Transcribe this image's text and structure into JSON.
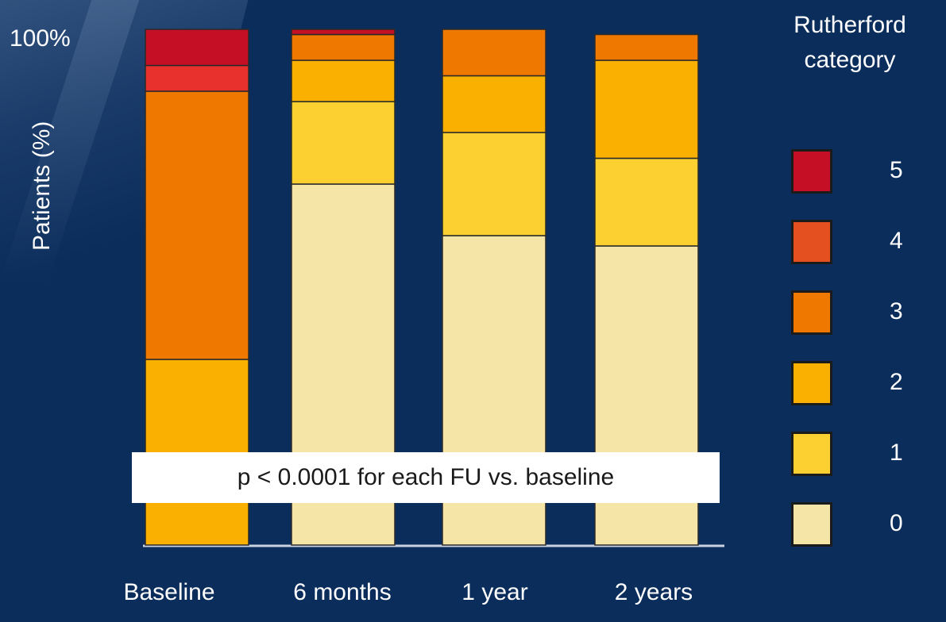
{
  "chart_data": {
    "type": "bar",
    "stacked": true,
    "title": "",
    "xlabel": "",
    "ylabel": "Patients (%)",
    "ylim": [
      0,
      100
    ],
    "y_tick_labels": [
      "100%"
    ],
    "categories": [
      "Baseline",
      "6 months",
      "1 year",
      "2 years"
    ],
    "legend_title": "Rutherford category",
    "legend_placement": "right",
    "series": [
      {
        "name": "0",
        "color": "#f5e6a8",
        "values": [
          0,
          70,
          60,
          58
        ]
      },
      {
        "name": "1",
        "color": "#fcd030",
        "values": [
          0,
          16,
          20,
          17
        ]
      },
      {
        "name": "2",
        "color": "#f9b000",
        "values": [
          36,
          8,
          11,
          19
        ]
      },
      {
        "name": "3",
        "color": "#ef7800",
        "values": [
          52,
          5,
          9,
          5
        ]
      },
      {
        "name": "4",
        "color": "#e8312d",
        "values": [
          5,
          0,
          0,
          0
        ]
      },
      {
        "name": "5",
        "color": "#c40f24",
        "values": [
          7,
          1,
          0,
          0
        ]
      }
    ],
    "annotation": "p < 0.0001 for each FU vs. baseline"
  },
  "legend_swatches": [
    {
      "label": "5",
      "color": "#c40f24"
    },
    {
      "label": "4",
      "color": "#e55020"
    },
    {
      "label": "3",
      "color": "#ef7800"
    },
    {
      "label": "2",
      "color": "#f9b000"
    },
    {
      "label": "1",
      "color": "#fcd030"
    },
    {
      "label": "0",
      "color": "#f5e6a8"
    }
  ]
}
